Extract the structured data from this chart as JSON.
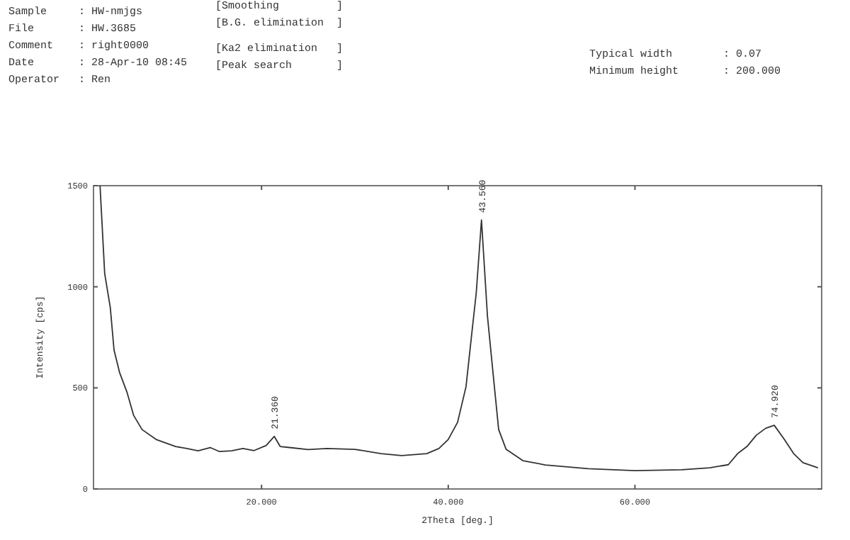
{
  "chart_data": {
    "type": "line",
    "xlabel": "2Theta [deg.]",
    "ylabel": "Intensity [cps]",
    "xlim": [
      2,
      80
    ],
    "ylim": [
      0,
      1500
    ],
    "xticks": [
      {
        "value": 20,
        "label": "20.000"
      },
      {
        "value": 40,
        "label": "40.000"
      },
      {
        "value": 60,
        "label": "60.000"
      }
    ],
    "yticks": [
      0,
      500,
      1000,
      1500
    ],
    "grid": false,
    "series": [
      {
        "color": "#333333",
        "x": [
          2.7,
          3.2,
          3.8,
          4.2,
          4.8,
          5.6,
          6.3,
          7.2,
          8.7,
          10.8,
          12,
          13.2,
          14.5,
          15.5,
          16.8,
          18,
          19.2,
          20.5,
          21.36,
          22,
          23,
          25,
          27,
          30,
          32.8,
          35,
          37.7,
          39,
          40,
          41,
          41.9,
          42.5,
          43,
          43.56,
          44.2,
          44.9,
          45.4,
          46.2,
          48,
          50.4,
          55,
          60,
          65,
          68,
          70,
          71,
          72,
          73,
          74,
          74.92,
          76,
          77,
          78,
          79.6
        ],
        "values": [
          1500,
          1065,
          897,
          687,
          575,
          477,
          364,
          294,
          245,
          210,
          200,
          189,
          205,
          185,
          189,
          200,
          190,
          215,
          260,
          210,
          205,
          195,
          200,
          196,
          175,
          165,
          175,
          200,
          245,
          330,
          505,
          760,
          970,
          1330,
          855,
          525,
          294,
          196,
          140,
          119,
          100,
          91,
          95,
          105,
          120,
          175,
          210,
          266,
          300,
          315,
          245,
          175,
          130,
          105
        ]
      }
    ],
    "annotations": [
      "Sample     : HW-nmjgs",
      "File       : HW.3685",
      "Comment    : right0000",
      "Date       : 28-Apr-10 08:45",
      "Operator   : Ren",
      "[Smoothing         ]",
      "[B.G. elimination  ]",
      "[Ka2 elimination   ]",
      "[Peak search       ]",
      "Typical width        : 0.07",
      "Minimum height       : 200.000",
      {
        "text": "21.360",
        "x": 21.36,
        "y": 260
      },
      {
        "text": "43.560",
        "x": 43.56,
        "y": 1330
      },
      {
        "text": "74.920",
        "x": 74.92,
        "y": 315
      }
    ]
  }
}
